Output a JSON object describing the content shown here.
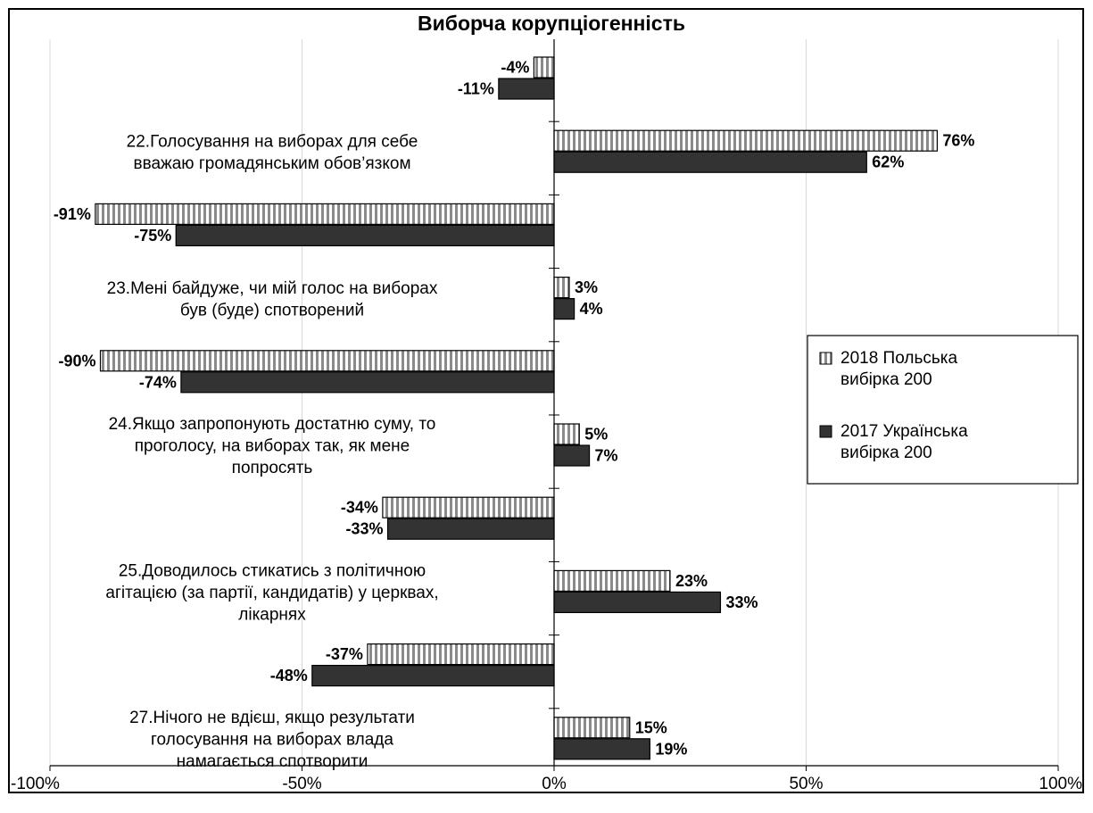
{
  "chart_data": {
    "type": "bar",
    "orientation": "horizontal",
    "title": "Виборча корупціогенність",
    "xlim": [
      -100,
      100
    ],
    "x_ticks": [
      "-100%",
      "-50%",
      "0%",
      "50%",
      "100%"
    ],
    "grid": true,
    "legend_position": "right",
    "categories": [
      "",
      "22.Голосування на виборах для себе вважаю громадянським обов’язком",
      "",
      "23.Мені байдуже, чи мій голос на виборах був (буде) спотворений",
      "",
      "24.Якщо запропонують достатню суму, то проголосу, на виборах так, як мене попросять",
      "",
      "25.Доводилось стикатись з політичною агітацією (за партії, кандидатів) у церквах, лікарнях",
      "",
      "27.Нічого не вдієш, якщо результати голосування на виборах влада намагається спотворити"
    ],
    "category_lines": [
      [],
      [
        "22.Голосування на виборах для себе",
        "вважаю громадянським обов’язком"
      ],
      [],
      [
        "23.Мені байдуже, чи мій голос на виборах",
        "був (буде) спотворений"
      ],
      [],
      [
        "24.Якщо запропонують достатню суму, то",
        "проголосу, на виборах так, як мене",
        "попросять"
      ],
      [],
      [
        "25.Доводилось стикатись з політичною",
        "агітацією (за партії, кандидатів) у церквах,",
        "лікарнях"
      ],
      [],
      [
        "27.Нічого не вдієш, якщо результати",
        "голосування на виборах влада",
        "намагається спотворити"
      ]
    ],
    "series": [
      {
        "name": "2018 Польська вибірка 200",
        "name_lines": [
          "2018 Польська",
          "вибірка 200"
        ],
        "pattern": "vertical-stripes",
        "values": [
          -4,
          76,
          -91,
          3,
          -90,
          5,
          -34,
          23,
          -37,
          15
        ]
      },
      {
        "name": "2017 Українська вибірка 200",
        "name_lines": [
          "2017 Українська",
          "вибірка 200"
        ],
        "color": "#333333",
        "values": [
          -11,
          62,
          -75,
          4,
          -74,
          7,
          -33,
          33,
          -48,
          19
        ]
      }
    ],
    "value_suffix": "%"
  }
}
